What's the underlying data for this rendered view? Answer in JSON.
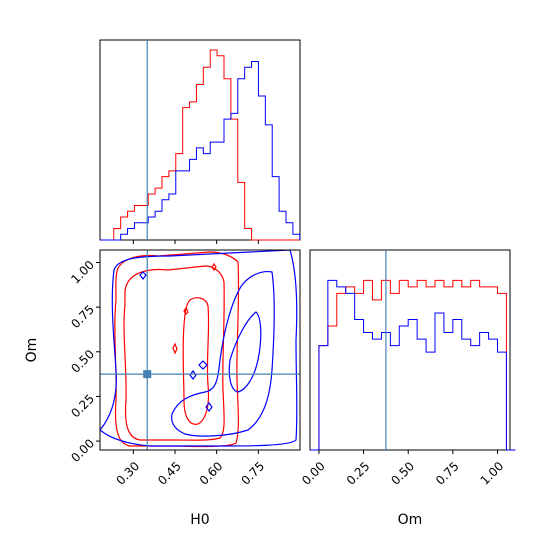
{
  "chart_data": {
    "type": "corner",
    "colors": {
      "series_a": "#ff0000",
      "series_b": "#0000ff",
      "truth": "#4682b4"
    },
    "parameters": [
      {
        "name": "H0",
        "range": [
          0.18,
          0.9
        ],
        "ticks": [
          "0.30",
          "0.45",
          "0.60",
          "0.75"
        ],
        "tick_values": [
          0.3,
          0.45,
          0.6,
          0.75
        ],
        "truth": 0.35
      },
      {
        "name": "Om",
        "range": [
          -0.05,
          1.07
        ],
        "ticks": [
          "0.00",
          "0.25",
          "0.50",
          "0.75",
          "1.00"
        ],
        "tick_values": [
          0.0,
          0.25,
          0.5,
          0.75,
          1.0
        ],
        "truth": 0.375
      }
    ],
    "panels": {
      "h0_hist": {
        "bin_start": 0.18,
        "bin_width": 0.0248,
        "series_red": [
          0,
          0,
          2,
          4,
          5,
          6,
          6,
          8,
          9,
          11,
          12,
          15,
          23,
          24,
          27,
          30,
          33,
          32,
          28,
          21,
          10,
          2,
          0,
          0,
          0,
          0,
          0,
          0,
          0
        ],
        "series_blue": [
          0,
          0,
          0,
          1,
          2,
          3,
          3,
          4,
          5,
          7,
          8,
          12,
          12,
          14,
          16,
          15,
          17,
          17,
          21,
          22,
          28,
          30,
          31,
          25,
          20,
          11,
          5,
          3,
          1
        ]
      },
      "om_hist": {
        "bin_start": -0.05,
        "bin_width": 0.05,
        "series_red": [
          0,
          16,
          19,
          24,
          25,
          24,
          26,
          23,
          26,
          24,
          26,
          25,
          26,
          25,
          26,
          25,
          26,
          25,
          26,
          25,
          25,
          24,
          0
        ],
        "series_blue": [
          0,
          16,
          26,
          25,
          24,
          20,
          18,
          17,
          18,
          16,
          19,
          20,
          17,
          15,
          21,
          18,
          20,
          17,
          16,
          18,
          17,
          15,
          0
        ]
      },
      "scatter": {
        "truth_point": {
          "x": 0.35,
          "y": 0.375
        }
      }
    },
    "xlabel_left": "H0",
    "xlabel_right": "Om",
    "ylabel": "Om"
  }
}
